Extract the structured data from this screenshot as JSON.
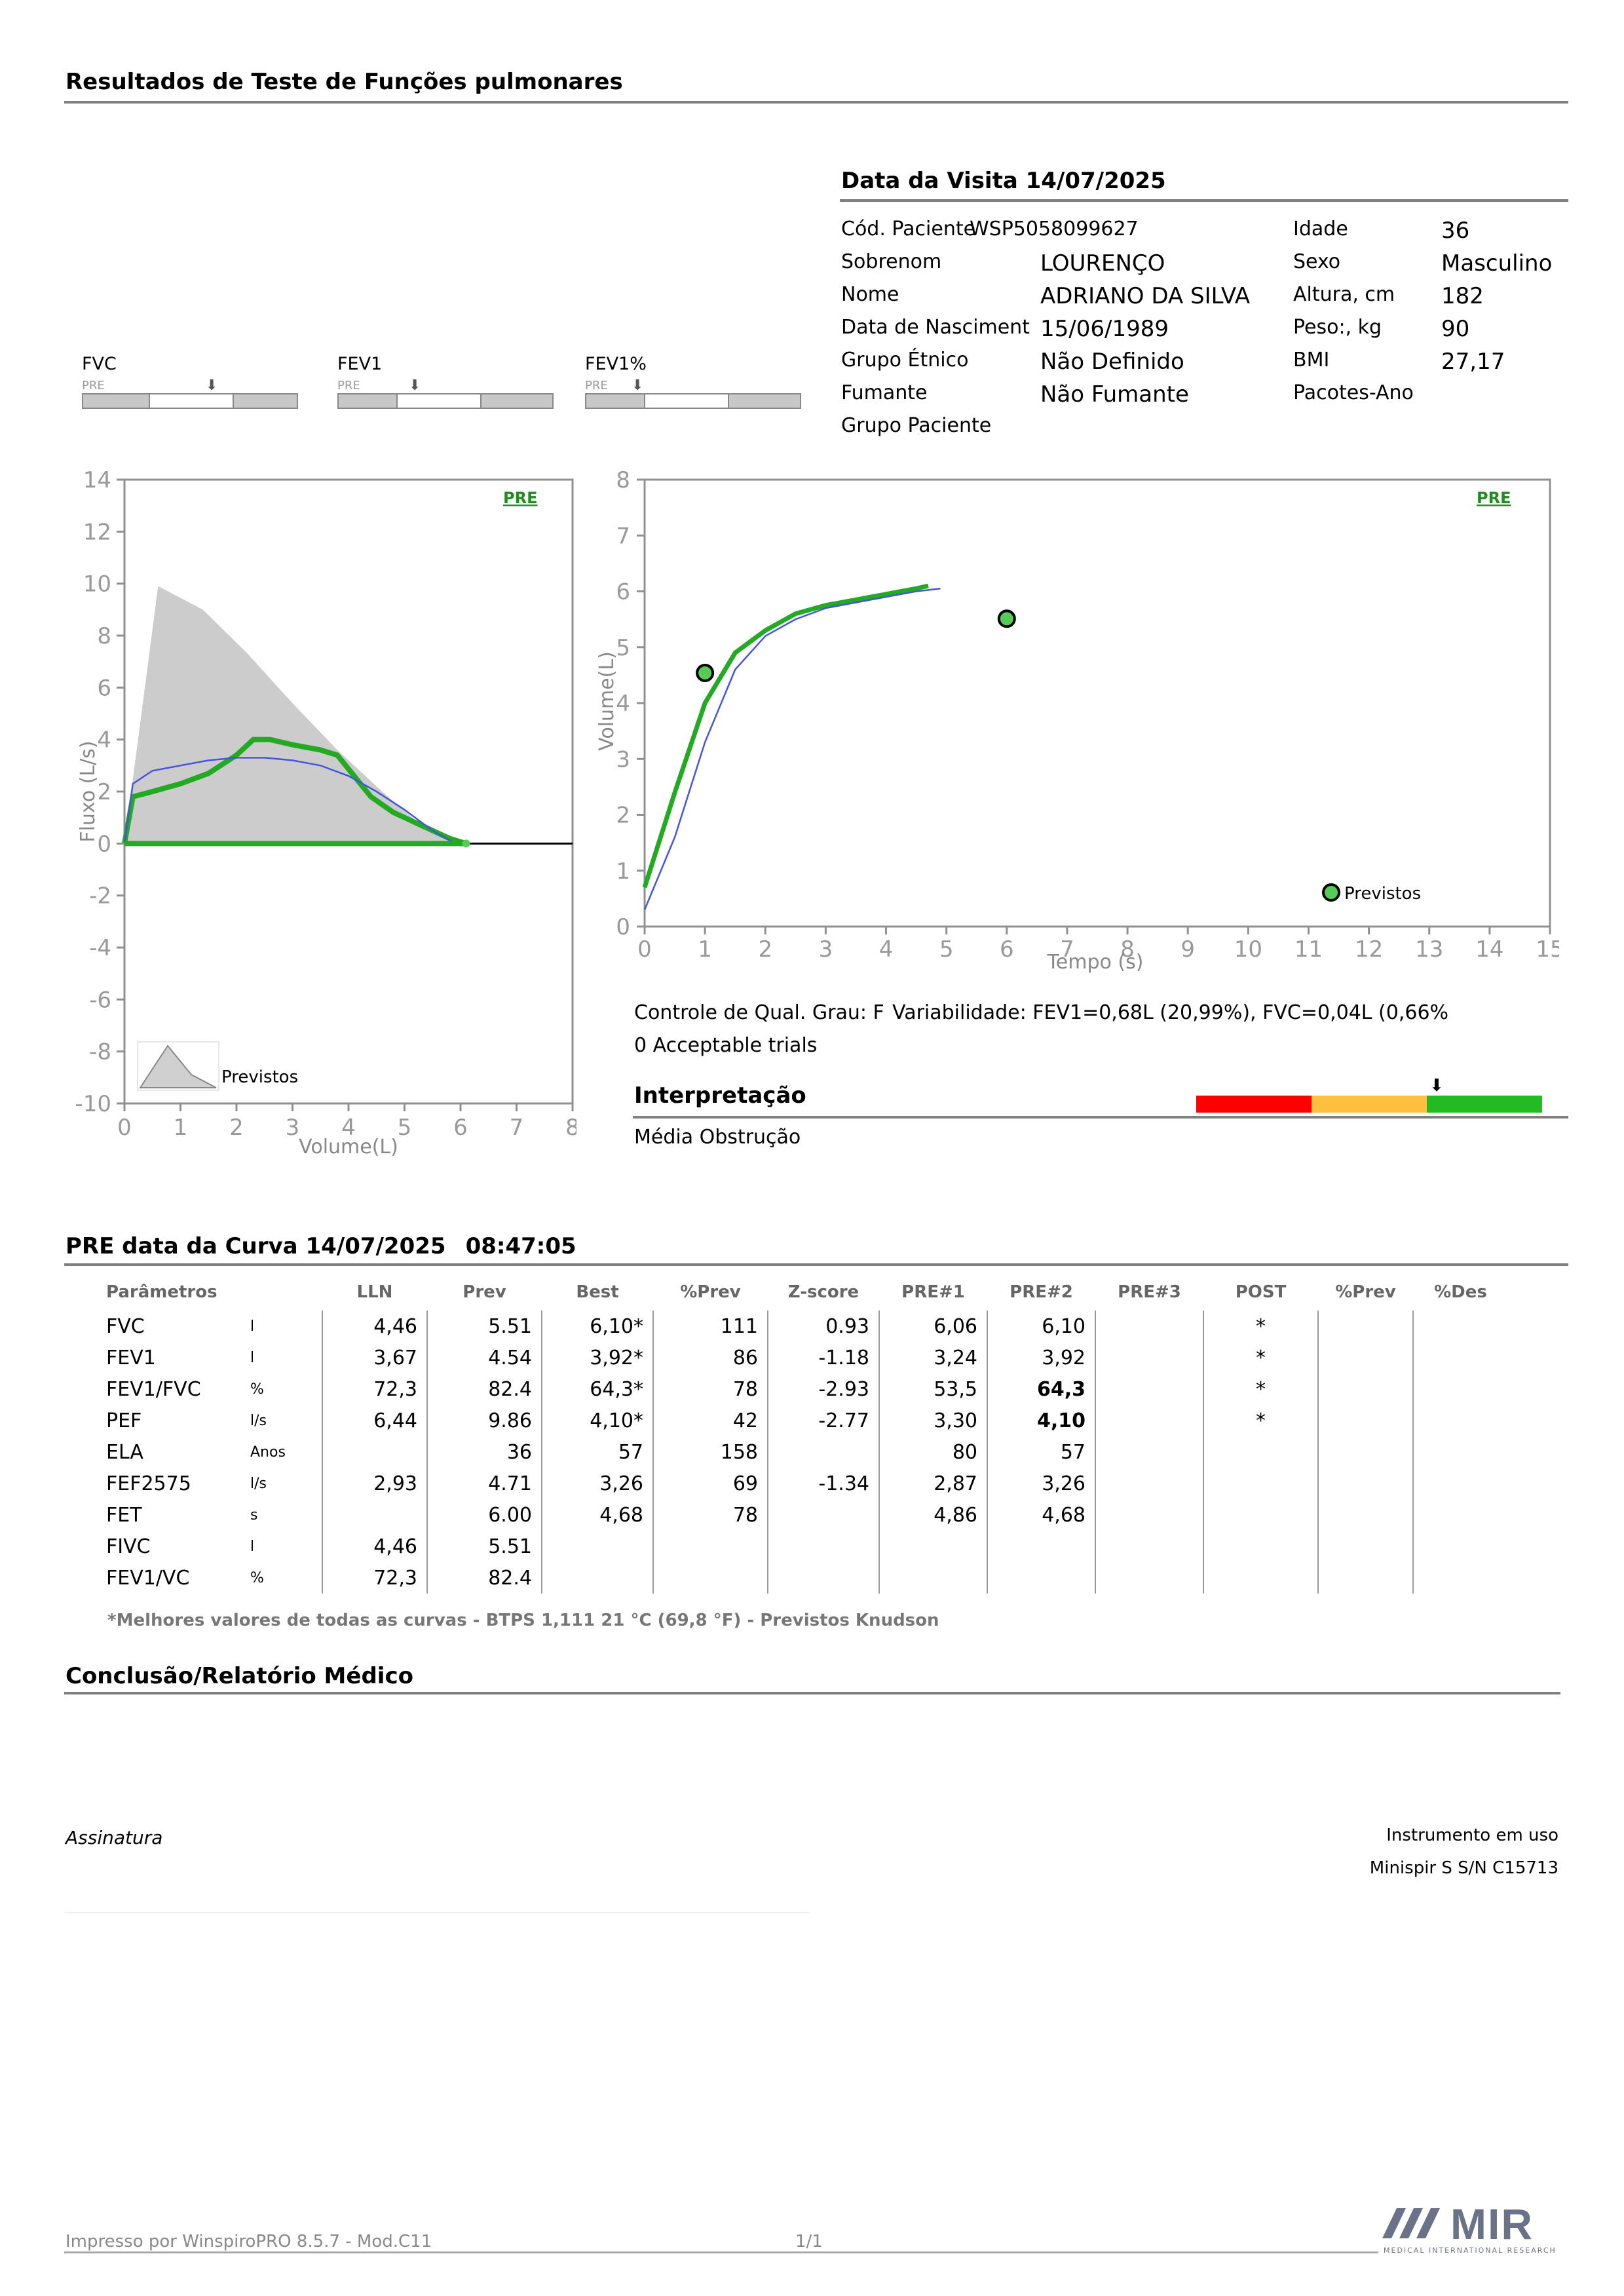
{
  "header": {
    "title": "Resultados de Teste de Funções pulmonares"
  },
  "visit": {
    "title": "Data da Visita 14/07/2025",
    "fields": [
      {
        "label": "Cód. Paciente",
        "value": "WSP5058099627"
      },
      {
        "label": "Sobrenom",
        "value": "LOURENÇO"
      },
      {
        "label": "Nome",
        "value": "ADRIANO DA SILVA"
      },
      {
        "label": "Data de Nasciment",
        "value": "15/06/1989"
      },
      {
        "label": "Grupo Étnico",
        "value": "Não Definido"
      },
      {
        "label": "Fumante",
        "value": "Não Fumante"
      },
      {
        "label": "Grupo Paciente",
        "value": ""
      }
    ],
    "fields_right": [
      {
        "label": "Idade",
        "value": "36"
      },
      {
        "label": "Sexo",
        "value": "Masculino"
      },
      {
        "label": "Altura, cm",
        "value": "182"
      },
      {
        "label": "Peso:, kg",
        "value": "90"
      },
      {
        "label": "BMI",
        "value": "27,17"
      },
      {
        "label": "Pacotes-Ano",
        "value": ""
      }
    ]
  },
  "indicators": [
    {
      "label": "FVC",
      "sub": "PRE"
    },
    {
      "label": "FEV1",
      "sub": "PRE"
    },
    {
      "label": "FEV1%",
      "sub": "PRE"
    }
  ],
  "quality": {
    "grade": "Controle de Qual. Grau: F",
    "variability": "Variabilidade: FEV1=0,68L (20,99%), FVC=0,04L (0,66%",
    "trials": "0 Acceptable trials"
  },
  "interpretation": {
    "title": "Interpretação",
    "text": "Média Obstrução",
    "colors": [
      "#ff0000",
      "#ffbf3f",
      "#22bb22"
    ]
  },
  "curve_title": {
    "label": "PRE data da Curva 14/07/2025",
    "time": "08:47:05"
  },
  "table": {
    "headers": [
      "Parâmetros",
      "LLN",
      "Prev",
      "Best",
      "%Prev",
      "Z-score",
      "PRE#1",
      "PRE#2",
      "PRE#3",
      "POST",
      "%Prev",
      "%Des"
    ],
    "rows": [
      [
        "FVC",
        "l",
        "4,46",
        "5.51",
        "6,10*",
        "111",
        "0.93",
        "6,06",
        "6,10",
        "",
        "*",
        "",
        ""
      ],
      [
        "FEV1",
        "l",
        "3,67",
        "4.54",
        "3,92*",
        "86",
        "-1.18",
        "3,24",
        "3,92",
        "",
        "*",
        "",
        ""
      ],
      [
        "FEV1/FVC",
        "%",
        "72,3",
        "82.4",
        "64,3*",
        "78",
        "-2.93",
        "53,5",
        "64,3",
        "",
        "*",
        "",
        ""
      ],
      [
        "PEF",
        "l/s",
        "6,44",
        "9.86",
        "4,10*",
        "42",
        "-2.77",
        "3,30",
        "4,10",
        "",
        "*",
        "",
        ""
      ],
      [
        "ELA",
        "Anos",
        "",
        "36",
        "57",
        "158",
        "",
        "80",
        "57",
        "",
        "",
        "",
        ""
      ],
      [
        "FEF2575",
        "l/s",
        "2,93",
        "4.71",
        "3,26",
        "69",
        "-1.34",
        "2,87",
        "3,26",
        "",
        "",
        "",
        ""
      ],
      [
        "FET",
        "s",
        "",
        "6.00",
        "4,68",
        "78",
        "",
        "4,86",
        "4,68",
        "",
        "",
        "",
        ""
      ],
      [
        "FIVC",
        "l",
        "4,46",
        "5.51",
        "",
        "",
        "",
        "",
        "",
        "",
        "",
        "",
        ""
      ],
      [
        "FEV1/VC",
        "%",
        "72,3",
        "82.4",
        "",
        "",
        "",
        "",
        "",
        "",
        "",
        "",
        ""
      ]
    ],
    "footnote": "*Melhores valores de todas as curvas - BTPS  1,111  21 °C  (69,8 °F) - Previstos Knudson"
  },
  "conclusion": {
    "title": "Conclusão/Relatório Médico"
  },
  "signature": {
    "label": "Assinatura"
  },
  "instrument": {
    "label": "Instrumento em uso",
    "value": "Minispir S S/N C15713"
  },
  "footer": {
    "printed": "Impresso por WinspiroPRO  8.5.7 - Mod.C11",
    "page": "1/1",
    "logo": "MIR",
    "logo_sub": "MEDICAL INTERNATIONAL RESEARCH"
  },
  "chart_data": [
    {
      "type": "line",
      "name": "flow-volume",
      "xlabel": "Volume(L)",
      "ylabel": "Fluxo (L/s)",
      "xlim": [
        0,
        8
      ],
      "ylim": [
        -10,
        14
      ],
      "xticks": [
        0,
        1,
        2,
        3,
        4,
        5,
        6,
        7,
        8
      ],
      "yticks": [
        -10,
        -8,
        -6,
        -4,
        -2,
        0,
        2,
        4,
        6,
        8,
        10,
        12,
        14
      ],
      "tag": "PRE",
      "legend": "Previstos",
      "predicted_area": {
        "x": [
          0,
          0.6,
          1.4,
          2.2,
          3.0,
          3.8,
          4.6,
          5.3,
          5.9
        ],
        "y": [
          0,
          9.9,
          9.0,
          7.3,
          5.4,
          3.6,
          2.0,
          0.7,
          0
        ]
      },
      "series": [
        {
          "color": "#22aa22",
          "x": [
            0,
            0.15,
            0.5,
            1.0,
            1.5,
            2.0,
            2.3,
            2.6,
            3.0,
            3.5,
            3.8,
            4.1,
            4.4,
            4.8,
            5.3,
            5.8,
            6.1
          ],
          "y": [
            0,
            1.8,
            2.0,
            2.3,
            2.7,
            3.4,
            4.0,
            4.0,
            3.8,
            3.6,
            3.4,
            2.6,
            1.8,
            1.2,
            0.7,
            0.2,
            0
          ]
        },
        {
          "color": "#4455dd",
          "x": [
            0,
            0.15,
            0.5,
            1.0,
            1.5,
            2.0,
            2.5,
            3.0,
            3.5,
            4.0,
            4.5,
            5.0,
            5.5,
            5.9
          ],
          "y": [
            0,
            2.3,
            2.8,
            3.0,
            3.2,
            3.3,
            3.3,
            3.2,
            3.0,
            2.6,
            2.0,
            1.3,
            0.5,
            0
          ]
        }
      ]
    },
    {
      "type": "line",
      "name": "volume-time",
      "xlabel": "Tempo (s)",
      "ylabel": "Volume(L)",
      "xlim": [
        0,
        15
      ],
      "ylim": [
        0,
        8
      ],
      "xticks": [
        0,
        1,
        2,
        3,
        4,
        5,
        6,
        7,
        8,
        9,
        10,
        11,
        12,
        13,
        14,
        15
      ],
      "yticks": [
        0,
        1,
        2,
        3,
        4,
        5,
        6,
        7,
        8
      ],
      "tag": "PRE",
      "legend": "Previstos",
      "predicted_points": [
        {
          "x": 1.0,
          "y": 4.54
        },
        {
          "x": 6.0,
          "y": 5.51
        }
      ],
      "series": [
        {
          "color": "#22aa22",
          "x": [
            0,
            0.5,
            1.0,
            1.5,
            2.0,
            2.5,
            3.0,
            3.5,
            4.0,
            4.5,
            4.7
          ],
          "y": [
            0.7,
            2.4,
            4.0,
            4.9,
            5.3,
            5.6,
            5.75,
            5.85,
            5.95,
            6.05,
            6.1
          ]
        },
        {
          "color": "#4455dd",
          "x": [
            0,
            0.5,
            1.0,
            1.5,
            2.0,
            2.5,
            3.0,
            3.5,
            4.0,
            4.5,
            4.9
          ],
          "y": [
            0.3,
            1.6,
            3.3,
            4.6,
            5.2,
            5.5,
            5.7,
            5.8,
            5.9,
            6.0,
            6.05
          ]
        }
      ]
    }
  ]
}
